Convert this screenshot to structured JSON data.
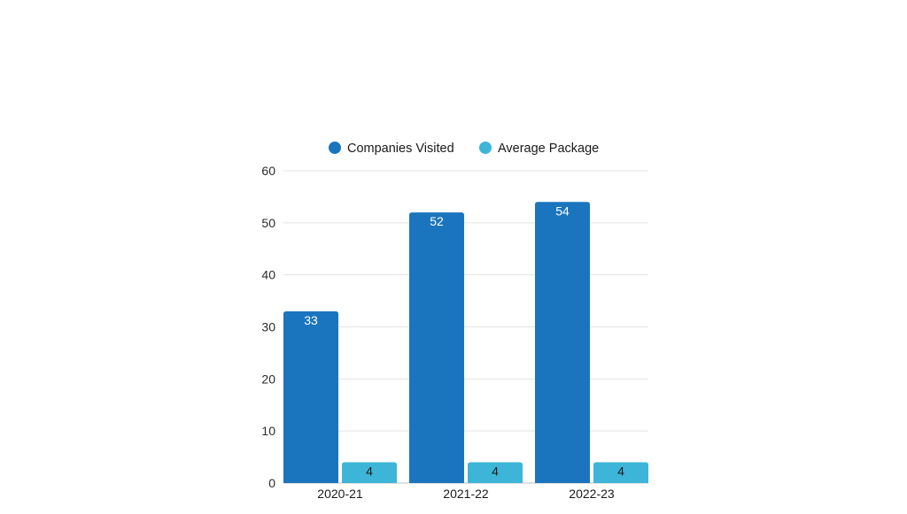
{
  "chart_data": {
    "type": "bar",
    "title": "",
    "xlabel": "",
    "ylabel": "",
    "categories": [
      "2020-21",
      "2021-22",
      "2022-23"
    ],
    "series": [
      {
        "name": "Companies Visited",
        "values": [
          33,
          52,
          54
        ],
        "color": "#1b75be"
      },
      {
        "name": "Average Package",
        "values": [
          4,
          4,
          4
        ],
        "color": "#3db5d8"
      }
    ],
    "ylim": [
      0,
      60
    ],
    "yticks": [
      "0",
      "10",
      "20",
      "30",
      "40",
      "50",
      "60"
    ],
    "grid": true,
    "legend_position": "top-center"
  }
}
